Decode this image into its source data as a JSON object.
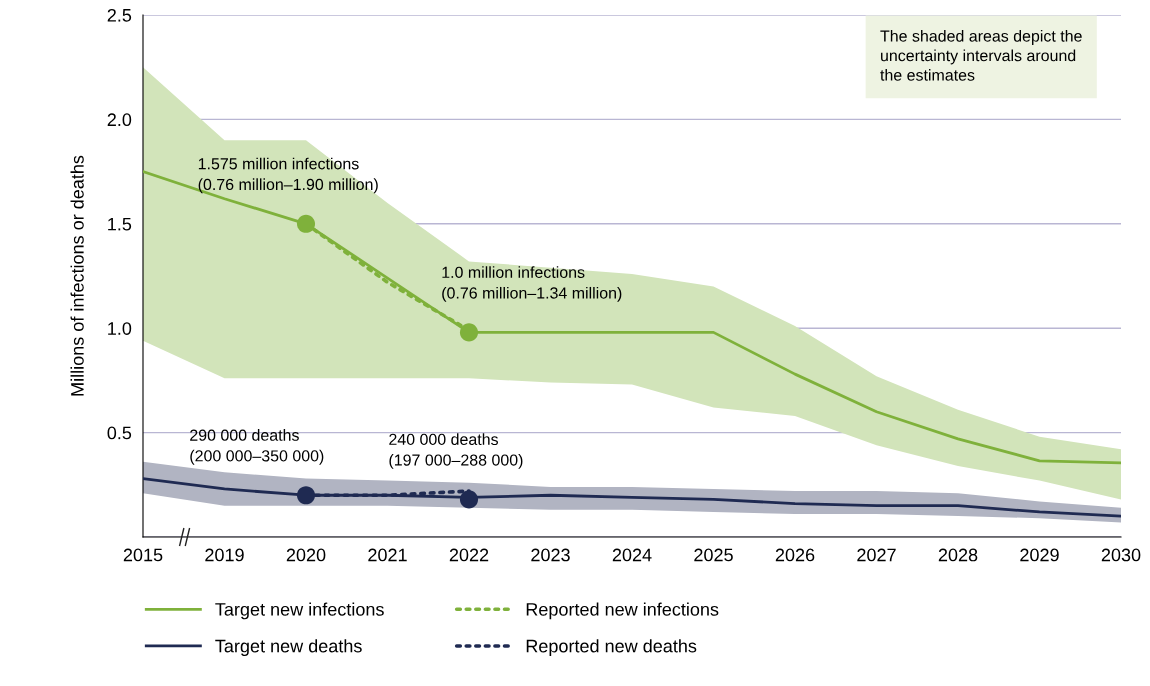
{
  "chart_data": {
    "type": "line",
    "ylabel": "Millions of infections or deaths",
    "categories": [
      "2015",
      "2019",
      "2020",
      "2021",
      "2022",
      "2023",
      "2024",
      "2025",
      "2026",
      "2027",
      "2028",
      "2029",
      "2030"
    ],
    "ylim": [
      0,
      2.5
    ],
    "yticks": [
      {
        "value": 0,
        "label": null
      },
      0.5,
      {
        "value": 1,
        "label": "1.0"
      },
      1.5,
      {
        "value": 2,
        "label": "2.0"
      },
      2.5
    ],
    "grid": "y",
    "legend": "bottom",
    "series": [
      {
        "name": "Target new infections",
        "line_style": "solid",
        "color": "#7fb13b",
        "values": [
          1.75,
          1.62,
          1.5,
          1.24,
          0.98,
          0.98,
          0.98,
          0.98,
          0.78,
          0.6,
          0.47,
          0.365,
          0.355
        ],
        "lower": [
          0.94,
          0.76,
          0.76,
          0.76,
          0.76,
          0.74,
          0.73,
          0.62,
          0.58,
          0.44,
          0.34,
          0.27,
          0.18
        ],
        "upper": [
          2.25,
          1.9,
          1.9,
          1.6,
          1.32,
          1.29,
          1.26,
          1.2,
          1.01,
          0.77,
          0.61,
          0.48,
          0.42
        ]
      },
      {
        "name": "Target new deaths",
        "line_style": "solid",
        "color": "#1f2a52",
        "values": [
          0.28,
          0.23,
          0.2,
          0.2,
          0.19,
          0.2,
          0.19,
          0.18,
          0.16,
          0.15,
          0.15,
          0.12,
          0.1
        ],
        "lower": [
          0.21,
          0.15,
          0.15,
          0.15,
          0.14,
          0.13,
          0.13,
          0.12,
          0.11,
          0.11,
          0.1,
          0.09,
          0.07
        ],
        "upper": [
          0.36,
          0.31,
          0.28,
          0.27,
          0.26,
          0.24,
          0.24,
          0.23,
          0.22,
          0.22,
          0.21,
          0.17,
          0.14
        ]
      },
      {
        "name": "Reported new infections",
        "line_style": "dotted",
        "color": "#7fb13b",
        "values": [
          null,
          null,
          1.5,
          1.22,
          0.99,
          null,
          null,
          null,
          null,
          null,
          null,
          null,
          null
        ]
      },
      {
        "name": "Reported new deaths",
        "line_style": "dotted",
        "color": "#1f2a52",
        "values": [
          null,
          null,
          0.2,
          0.2,
          0.22,
          null,
          null,
          null,
          null,
          null,
          null,
          null,
          null
        ]
      },
      {
        "type": "scatter",
        "marker": "circle",
        "color": "#7fb13b",
        "values": [
          null,
          null,
          1.5,
          null,
          0.98,
          null,
          null,
          null,
          null,
          null,
          null,
          null,
          null
        ]
      },
      {
        "type": "scatter",
        "marker": "circle",
        "color": "#1f2a52",
        "values": [
          null,
          null,
          0.2,
          null,
          0.18,
          null,
          null,
          null,
          null,
          null,
          null,
          null,
          null
        ]
      }
    ],
    "annotations": [
      {
        "text": "1.575 million infections\n(0.76 million–1.90 million)",
        "x": "2020",
        "y": 1.5
      },
      {
        "text": "1.0 million infections\n(0.76 million–1.34 million)",
        "x": "2022",
        "y": 0.98
      },
      {
        "text": "290 000 deaths\n(200 000–350 000)",
        "x": "2020",
        "y": 0.2
      },
      {
        "text": "240 000 deaths\n(197 000–288 000)",
        "x": "2022",
        "y": 0.18
      },
      "The shaded areas depict the\nuncertainty intervals around\nthe estimates"
    ]
  }
}
